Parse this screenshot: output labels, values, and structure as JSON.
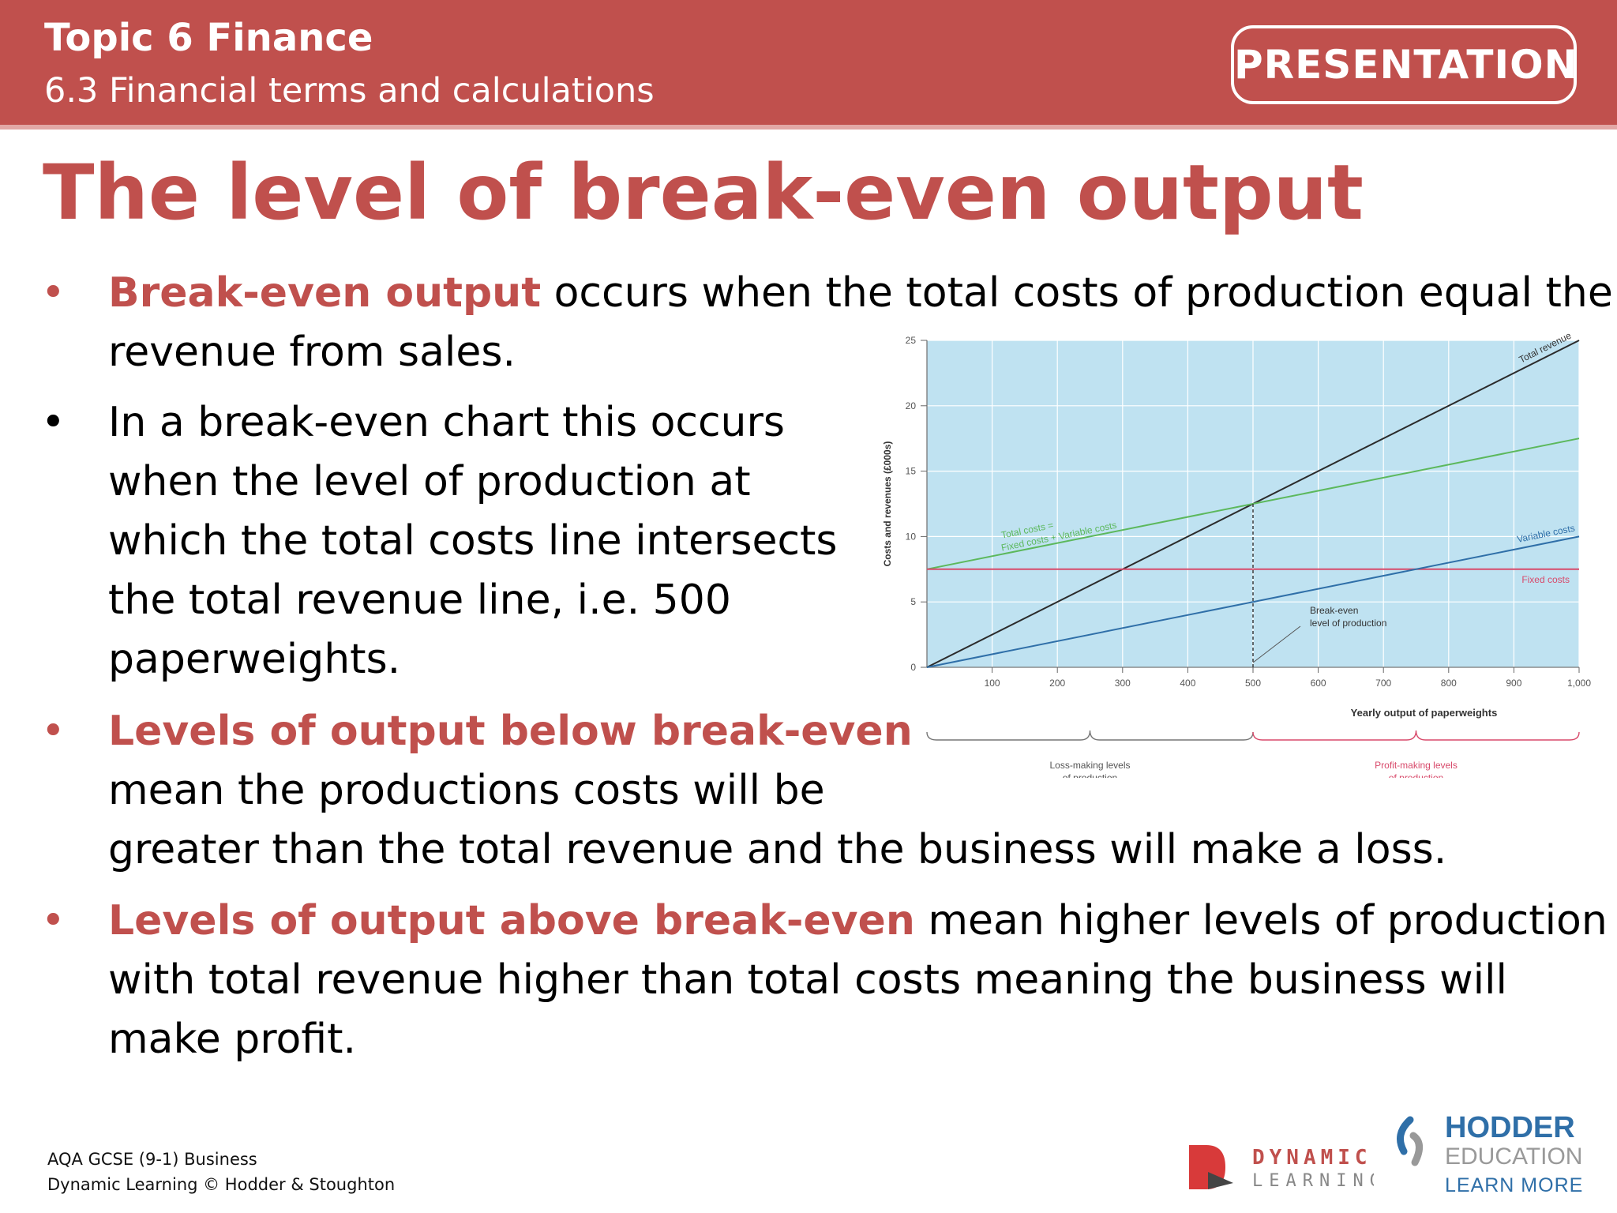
{
  "header": {
    "topic": "Topic 6 Finance",
    "subtopic": "6.3 Financial terms and calculations",
    "badge": "PRESENTATION"
  },
  "title": "The level of break-even output",
  "bullets": {
    "b1": {
      "lead": "Break-even output",
      "line1_rest": " occurs when the total costs of production equal the",
      "line2": "revenue from sales."
    },
    "b2": {
      "lines": [
        "In a break-even chart this occurs",
        "when the level of production at",
        "which the total costs line intersects",
        "the total revenue line, i.e. 500",
        "paperweights."
      ]
    },
    "b3": {
      "lead": "Levels of output below break-even",
      "line2": "mean the productions costs will be",
      "line3": "greater than the total revenue and the business will make a loss."
    },
    "b4": {
      "lead": "Levels of output above break-even",
      "line1_rest": " mean higher levels of production",
      "line2": "with total revenue higher than total costs meaning the business will",
      "line3": "make profit."
    }
  },
  "chart_data": {
    "type": "line",
    "ylabel": "Costs and revenues (£000s)",
    "xlabel": "Yearly output of paperweights",
    "xlim": [
      0,
      1000
    ],
    "ylim": [
      0,
      25
    ],
    "x_ticks": [
      "100",
      "200",
      "300",
      "400",
      "500",
      "600",
      "700",
      "800",
      "900",
      "1,000"
    ],
    "y_ticks": [
      "0",
      "5",
      "10",
      "15",
      "20",
      "25"
    ],
    "series": [
      {
        "name": "Total revenue",
        "color": "#2b2b2b",
        "points": [
          [
            0,
            0
          ],
          [
            1000,
            25
          ]
        ]
      },
      {
        "name": "Total costs = Fixed costs + Variable costs",
        "color": "#5cb85c",
        "points": [
          [
            0,
            7.5
          ],
          [
            1000,
            17.5
          ]
        ]
      },
      {
        "name": "Fixed costs",
        "color": "#d84a6b",
        "points": [
          [
            0,
            7.5
          ],
          [
            1000,
            7.5
          ]
        ]
      },
      {
        "name": "Variable costs",
        "color": "#2f6fa8",
        "points": [
          [
            0,
            0
          ],
          [
            1000,
            10
          ]
        ]
      }
    ],
    "annotations": {
      "break_even_x": 500,
      "break_even_label_1": "Break-even",
      "break_even_label_2": "level of production",
      "loss_label_1": "Loss-making levels",
      "loss_label_2": "of production",
      "profit_label_1": "Profit-making levels",
      "profit_label_2": "of production",
      "tc_label_1": "Total costs =",
      "tc_label_2": "Fixed costs + Variable costs"
    },
    "background": "#bfe2f1",
    "grid": true
  },
  "footer": {
    "line1": "AQA GCSE (9-1) Business",
    "line2": "Dynamic Learning © Hodder & Stoughton"
  },
  "logos": {
    "dl_top": "DYNAMIC",
    "dl_bottom": "LEARNING",
    "hodder_1": "HODDER",
    "hodder_2": "EDUCATION",
    "hodder_3": "LEARN MORE"
  }
}
